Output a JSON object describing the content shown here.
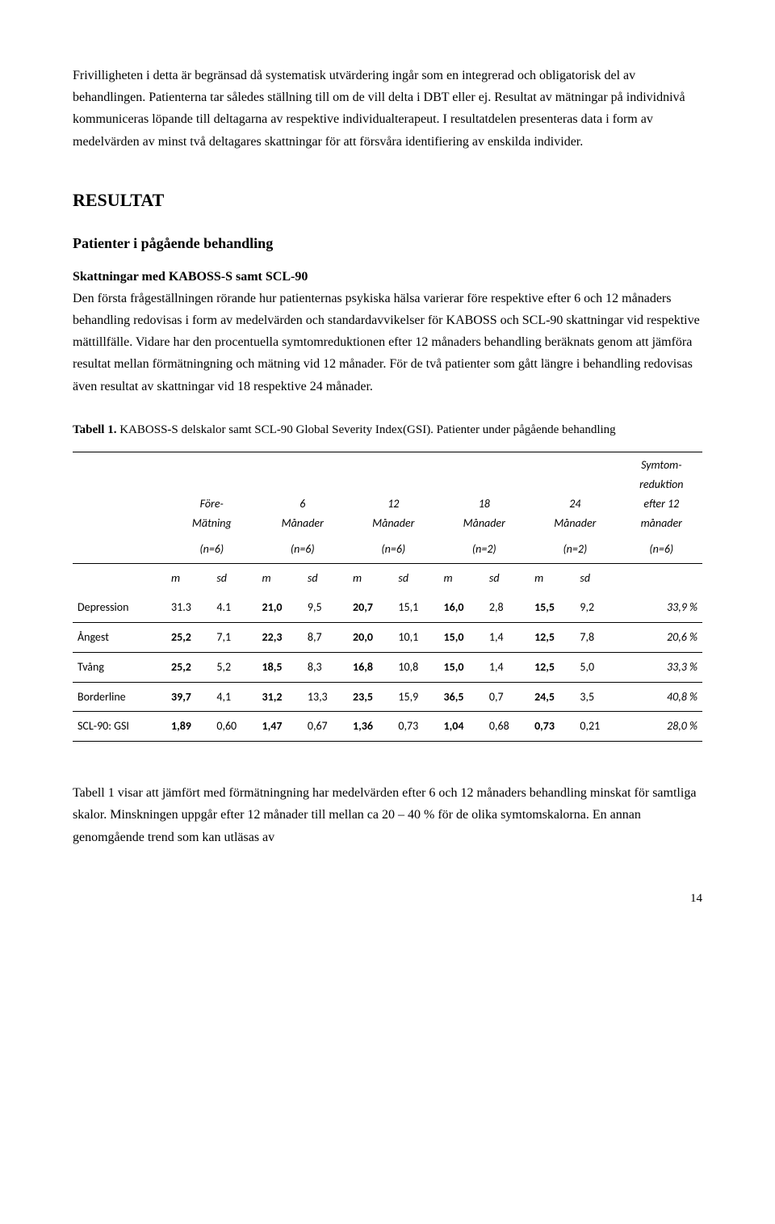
{
  "paragraphs": {
    "p1": "Frivilligheten i detta är begränsad då systematisk utvärdering ingår som en integrerad och obligatorisk del av behandlingen. Patienterna tar således ställning till om de vill delta i DBT eller ej. Resultat av mätningar på individnivå kommuniceras löpande till deltagarna av respektive individualterapeut. I resultatdelen presenteras data i form av medelvärden av minst två deltagares skattningar för att försvåra identifiering av enskilda individer.",
    "h2": "RESULTAT",
    "h3": "Patienter i pågående behandling",
    "runin": "Skattningar med KABOSS-S samt SCL-90",
    "p2": "Den första frågeställningen rörande hur patienternas psykiska hälsa varierar före respektive efter 6 och 12 månaders behandling redovisas i form av medelvärden och standardavvikelser för KABOSS och SCL-90 skattningar vid respektive mättillfälle. Vidare har den procentuella symtomreduktionen efter 12 månaders behandling beräknats genom att jämföra resultat mellan förmätningning och mätning vid 12 månader. För de två patienter som gått längre i behandling redovisas även resultat av skattningar vid 18 respektive 24 månader.",
    "tcap_bold": "Tabell 1.",
    "tcap_rest": " KABOSS-S delskalor samt SCL-90 Global Severity Index(GSI). Patienter under pågående behandling",
    "p3": "Tabell 1 visar att jämfört med förmätningning har medelvärden efter 6 och 12 månaders behandling minskat för samtliga skalor. Minskningen uppgår efter 12 månader till mellan ca 20 – 40 % för de olika symtomskalorna. En annan genomgående trend som kan utläsas av"
  },
  "table": {
    "headers": {
      "fore1": "Före-",
      "fore2": "Mätning",
      "m6a": "6",
      "m6b": "Månader",
      "m12a": "12",
      "m12b": "Månader",
      "m18a": "18",
      "m18b": "Månader",
      "m24a": "24",
      "m24b": "Månader",
      "red1": "Symtom-",
      "red2": "reduktion",
      "red3": "efter 12",
      "red4": "månader"
    },
    "nrow": [
      "(n=6)",
      "(n=6)",
      "(n=6)",
      "(n=2)",
      "(n=2)",
      "(n=6)"
    ],
    "msd": [
      "m",
      "sd",
      "m",
      "sd",
      "m",
      "sd",
      "m",
      "sd",
      "m",
      "sd"
    ],
    "rows": [
      {
        "label": "Depression",
        "v": [
          "31.3",
          "4.1",
          "21,0",
          "9,5",
          "20,7",
          "15,1",
          "16,0",
          "2,8",
          "15,5",
          "9,2"
        ],
        "pct": "33,9 %",
        "bold": [
          false,
          false,
          true,
          false,
          true,
          false,
          true,
          false,
          true,
          false
        ]
      },
      {
        "label": "Ångest",
        "v": [
          "25,2",
          "7,1",
          "22,3",
          "8,7",
          "20,0",
          "10,1",
          "15,0",
          "1,4",
          "12,5",
          "7,8"
        ],
        "pct": "20,6 %",
        "bold": [
          true,
          false,
          true,
          false,
          true,
          false,
          true,
          false,
          true,
          false
        ]
      },
      {
        "label": "Tvång",
        "v": [
          "25,2",
          "5,2",
          "18,5",
          "8,3",
          "16,8",
          "10,8",
          "15,0",
          "1,4",
          "12,5",
          "5,0"
        ],
        "pct": "33,3 %",
        "bold": [
          true,
          false,
          true,
          false,
          true,
          false,
          true,
          false,
          true,
          false
        ]
      },
      {
        "label": "Borderline",
        "v": [
          "39,7",
          "4,1",
          "31,2",
          "13,3",
          "23,5",
          "15,9",
          "36,5",
          "0,7",
          "24,5",
          "3,5"
        ],
        "pct": "40,8 %",
        "bold": [
          true,
          false,
          true,
          false,
          true,
          false,
          true,
          false,
          true,
          false
        ]
      },
      {
        "label": "SCL-90: GSI",
        "v": [
          "1,89",
          "0,60",
          "1,47",
          "0,67",
          "1,36",
          "0,73",
          "1,04",
          "0,68",
          "0,73",
          "0,21"
        ],
        "pct": "28,0 %",
        "bold": [
          true,
          false,
          true,
          false,
          true,
          false,
          true,
          false,
          true,
          false
        ]
      }
    ]
  },
  "pagenum": "14"
}
